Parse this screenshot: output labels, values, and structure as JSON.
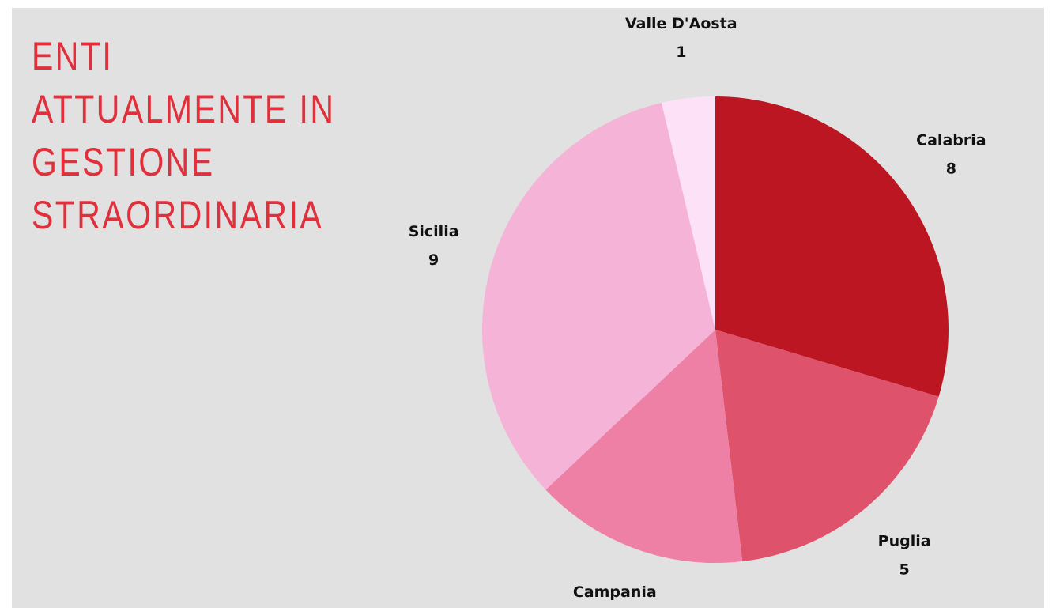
{
  "chart_data": {
    "type": "pie",
    "title": "ENTI ATTUALMENTE IN GESTIONE STRAORDINARIA",
    "categories": [
      "Calabria",
      "Puglia",
      "Campania",
      "Sicilia",
      "Valle D'Aosta"
    ],
    "values": [
      8,
      5,
      4,
      9,
      1
    ],
    "colors": [
      "#bc1622",
      "#de526b",
      "#ee80a6",
      "#f5b3d7",
      "#fde2f7"
    ]
  }
}
